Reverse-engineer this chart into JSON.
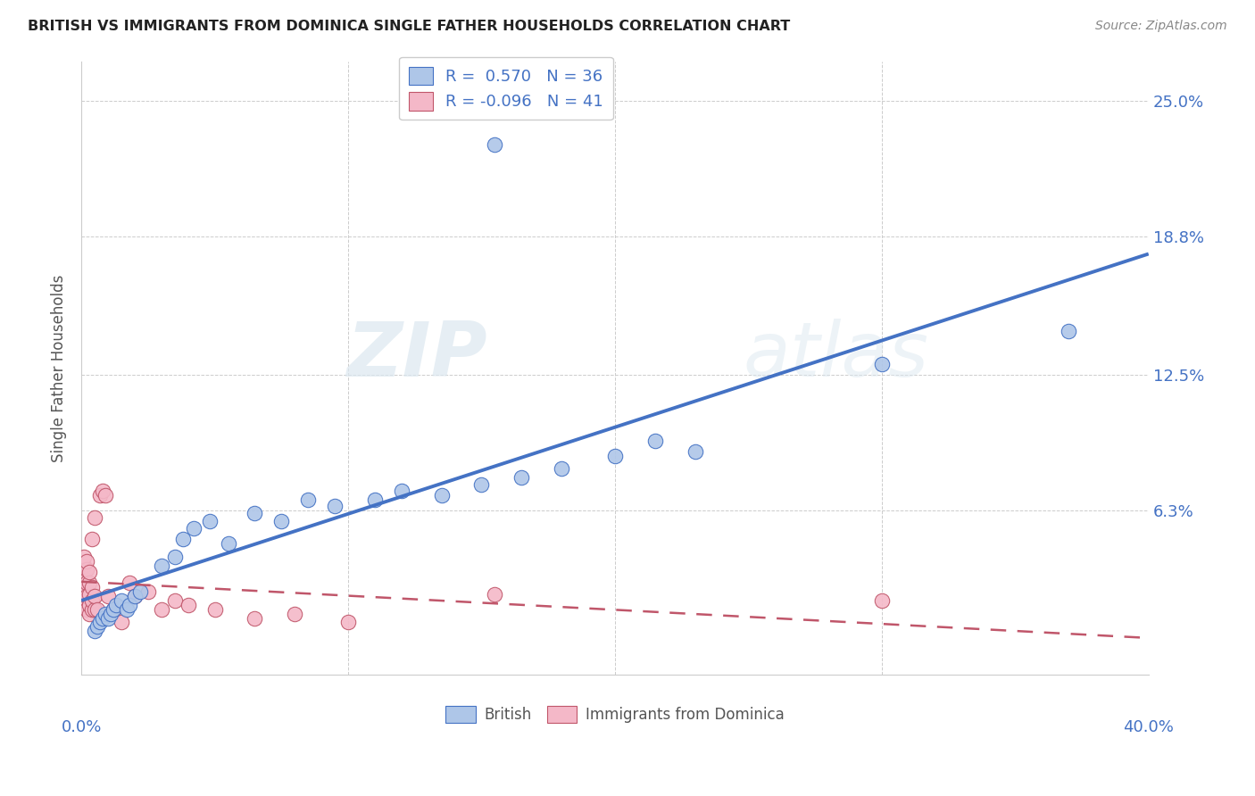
{
  "title": "BRITISH VS IMMIGRANTS FROM DOMINICA SINGLE FATHER HOUSEHOLDS CORRELATION CHART",
  "source": "Source: ZipAtlas.com",
  "ylabel": "Single Father Households",
  "ytick_labels": [
    "",
    "6.3%",
    "12.5%",
    "18.8%",
    "25.0%"
  ],
  "ytick_values": [
    0.0,
    0.063,
    0.125,
    0.188,
    0.25
  ],
  "xlim": [
    0.0,
    0.4
  ],
  "ylim": [
    -0.012,
    0.268
  ],
  "british_R": 0.57,
  "british_N": 36,
  "dominica_R": -0.096,
  "dominica_N": 41,
  "british_color": "#aec6e8",
  "british_line_color": "#4472c4",
  "dominica_color": "#f4b8c8",
  "dominica_line_color": "#c0566a",
  "watermark_zip": "ZIP",
  "watermark_atlas": "atlas",
  "british_x": [
    0.005,
    0.006,
    0.007,
    0.008,
    0.009,
    0.01,
    0.011,
    0.012,
    0.013,
    0.015,
    0.017,
    0.018,
    0.02,
    0.022,
    0.03,
    0.035,
    0.038,
    0.042,
    0.048,
    0.055,
    0.065,
    0.075,
    0.085,
    0.095,
    0.11,
    0.12,
    0.135,
    0.15,
    0.165,
    0.18,
    0.2,
    0.215,
    0.23,
    0.155,
    0.3,
    0.37
  ],
  "british_y": [
    0.008,
    0.01,
    0.012,
    0.014,
    0.016,
    0.014,
    0.016,
    0.018,
    0.02,
    0.022,
    0.018,
    0.02,
    0.024,
    0.026,
    0.038,
    0.042,
    0.05,
    0.055,
    0.058,
    0.048,
    0.062,
    0.058,
    0.068,
    0.065,
    0.068,
    0.072,
    0.07,
    0.075,
    0.078,
    0.082,
    0.088,
    0.095,
    0.09,
    0.23,
    0.13,
    0.145
  ],
  "dominica_x": [
    0.001,
    0.001,
    0.001,
    0.001,
    0.001,
    0.002,
    0.002,
    0.002,
    0.002,
    0.002,
    0.003,
    0.003,
    0.003,
    0.003,
    0.003,
    0.004,
    0.004,
    0.004,
    0.004,
    0.005,
    0.005,
    0.005,
    0.006,
    0.007,
    0.008,
    0.009,
    0.01,
    0.012,
    0.015,
    0.018,
    0.02,
    0.025,
    0.03,
    0.035,
    0.04,
    0.05,
    0.065,
    0.08,
    0.1,
    0.155,
    0.3
  ],
  "dominica_y": [
    0.022,
    0.028,
    0.032,
    0.038,
    0.042,
    0.018,
    0.024,
    0.03,
    0.036,
    0.04,
    0.016,
    0.02,
    0.025,
    0.03,
    0.035,
    0.018,
    0.022,
    0.028,
    0.05,
    0.018,
    0.024,
    0.06,
    0.018,
    0.07,
    0.072,
    0.07,
    0.024,
    0.018,
    0.012,
    0.03,
    0.024,
    0.026,
    0.018,
    0.022,
    0.02,
    0.018,
    0.014,
    0.016,
    0.012,
    0.025,
    0.022
  ],
  "british_line_start_x": 0.0,
  "british_line_start_y": 0.0,
  "british_line_end_x": 0.4,
  "british_line_end_y": 0.145,
  "dominica_line_start_x": 0.0,
  "dominica_line_start_y": 0.028,
  "dominica_line_end_x": 0.4,
  "dominica_line_end_y": -0.005
}
